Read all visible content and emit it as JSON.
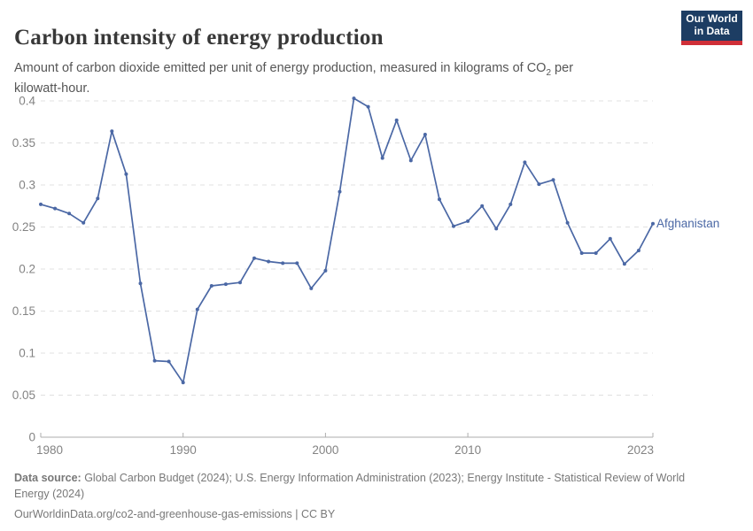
{
  "header": {
    "title": "Carbon intensity of energy production",
    "subtitle": {
      "prefix": "Amount of carbon dioxide emitted per unit of energy production, measured in kilograms of CO",
      "sub": "2",
      "suffix": " per kilowatt-hour."
    },
    "logo": {
      "line1": "Our World",
      "line2": "in Data"
    }
  },
  "chart_data": {
    "type": "line",
    "title": "Carbon intensity of energy production",
    "ylabel": "",
    "xlabel": "",
    "unit": "kilograms of CO2 per kilowatt-hour",
    "ylim": [
      0,
      0.4
    ],
    "grid": "horizontal-dashed",
    "legend_position": "end-of-line-label",
    "x": [
      1980,
      1981,
      1982,
      1983,
      1984,
      1985,
      1986,
      1987,
      1988,
      1989,
      1990,
      1991,
      1992,
      1993,
      1994,
      1995,
      1996,
      1997,
      1998,
      1999,
      2000,
      2001,
      2002,
      2003,
      2004,
      2005,
      2006,
      2007,
      2008,
      2009,
      2010,
      2011,
      2012,
      2013,
      2014,
      2015,
      2016,
      2017,
      2018,
      2019,
      2020,
      2021,
      2022,
      2023
    ],
    "series": [
      {
        "name": "Afghanistan",
        "color": "#4b68a5",
        "values": [
          0.277,
          0.272,
          0.266,
          0.255,
          0.284,
          0.364,
          0.313,
          0.183,
          0.091,
          0.09,
          0.065,
          0.152,
          0.18,
          0.182,
          0.184,
          0.213,
          0.209,
          0.207,
          0.207,
          0.177,
          0.198,
          0.292,
          0.403,
          0.393,
          0.332,
          0.377,
          0.329,
          0.36,
          0.283,
          0.251,
          0.257,
          0.275,
          0.248,
          0.277,
          0.327,
          0.301,
          0.306,
          0.255,
          0.219,
          0.219,
          0.236,
          0.206,
          0.222,
          0.254
        ]
      }
    ],
    "yticks": [
      {
        "value": 0,
        "label": "0"
      },
      {
        "value": 0.05,
        "label": "0.05"
      },
      {
        "value": 0.1,
        "label": "0.1"
      },
      {
        "value": 0.15,
        "label": "0.15"
      },
      {
        "value": 0.2,
        "label": "0.2"
      },
      {
        "value": 0.25,
        "label": "0.25"
      },
      {
        "value": 0.3,
        "label": "0.3"
      },
      {
        "value": 0.35,
        "label": "0.35"
      },
      {
        "value": 0.4,
        "label": "0.4"
      }
    ],
    "xticks": [
      {
        "value": 1980,
        "label": "1980"
      },
      {
        "value": 1990,
        "label": "1990"
      },
      {
        "value": 2000,
        "label": "2000"
      },
      {
        "value": 2010,
        "label": "2010"
      },
      {
        "value": 2023,
        "label": "2023"
      }
    ]
  },
  "footer": {
    "source_label": "Data source:",
    "source_text": " Global Carbon Budget (2024); U.S. Energy Information Administration (2023); Energy Institute - Statistical Review of World Energy (2024)",
    "url": "OurWorldinData.org/co2-and-greenhouse-gas-emissions",
    "license": " | CC BY"
  },
  "colors": {
    "line": "#4b68a5",
    "grid": "#e0e0e0",
    "axis": "#adadad",
    "tick_label": "#838383",
    "navy": "#1d3d63",
    "red": "#cf2f38"
  }
}
